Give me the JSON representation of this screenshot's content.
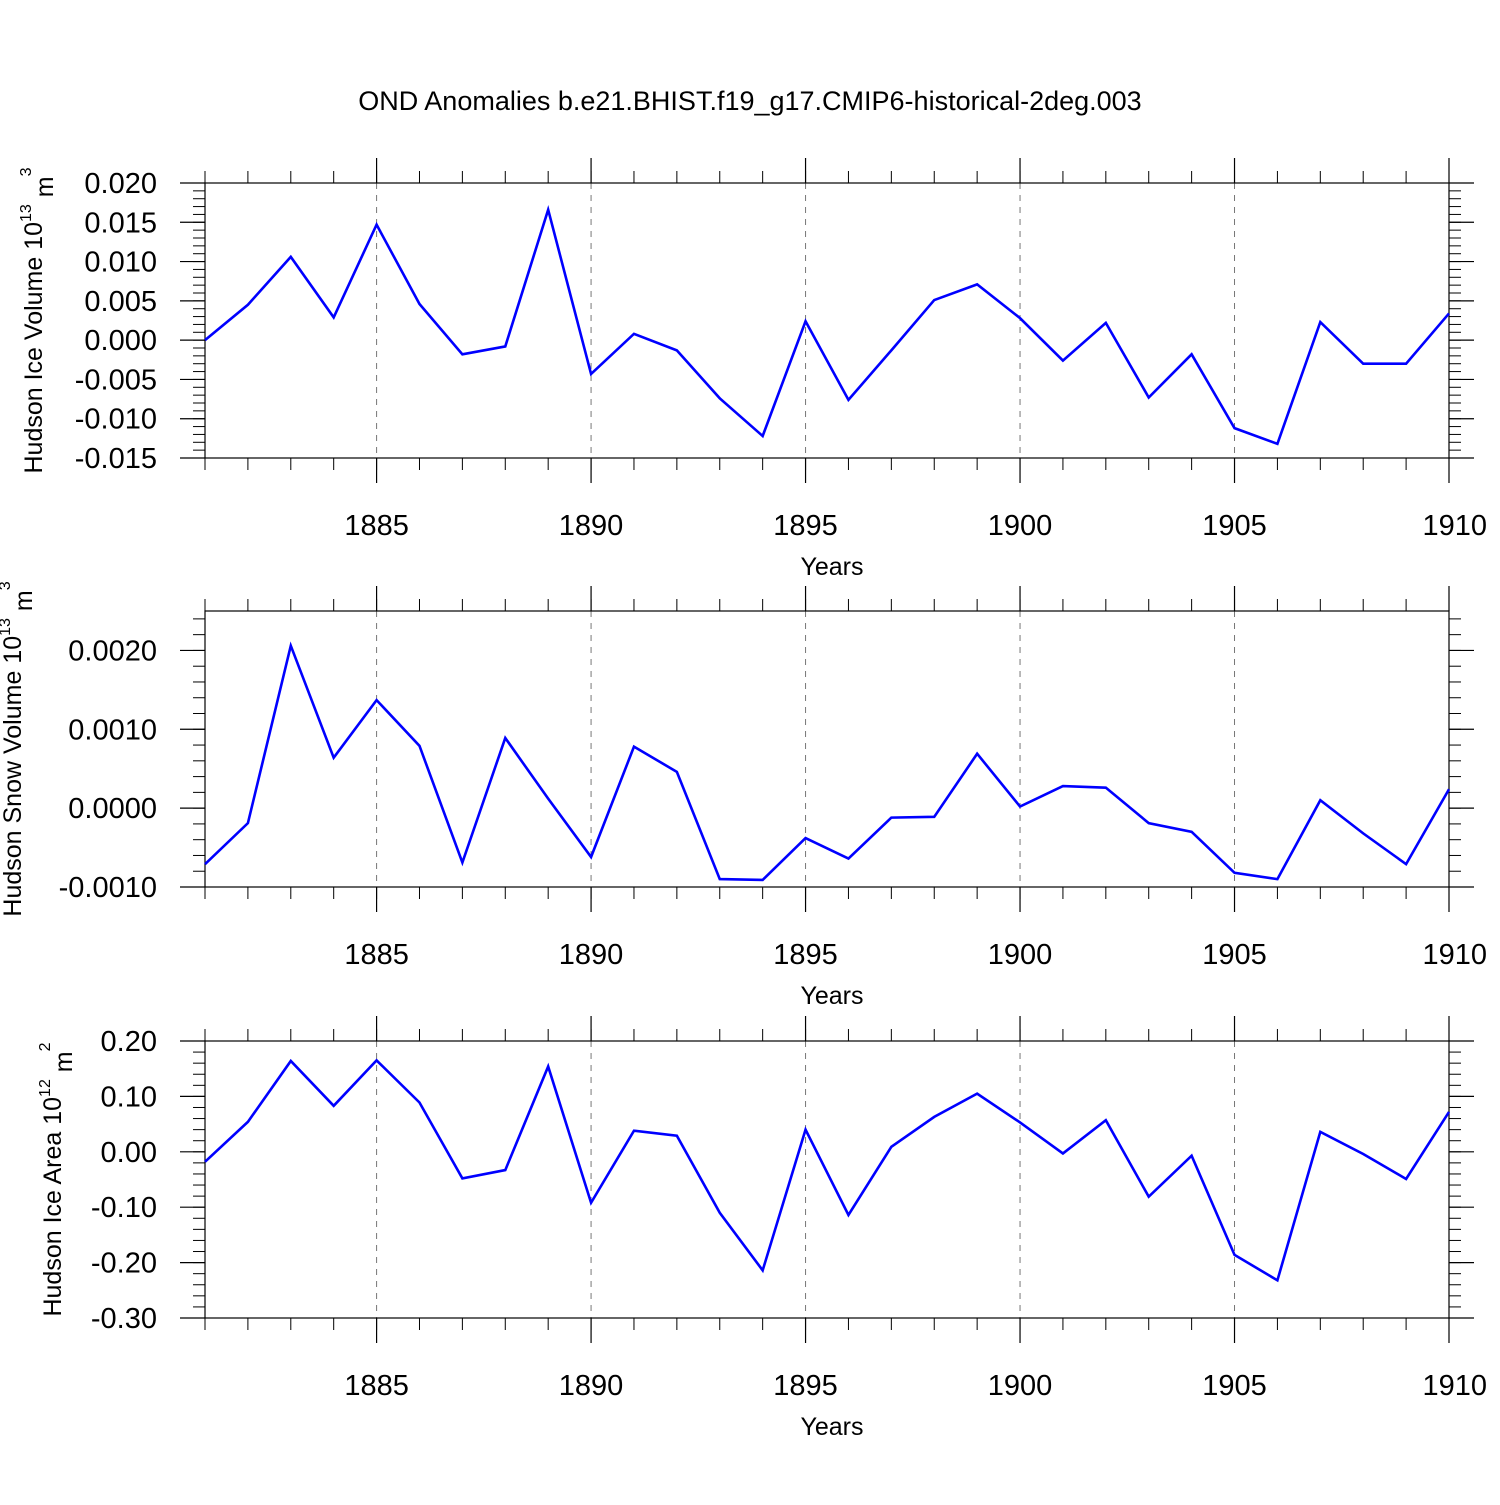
{
  "title": "OND Anomalies b.e21.BHIST.f19_g17.CMIP6-historical-2deg.003",
  "line_color": "#0000ff",
  "chart_data": [
    {
      "type": "line",
      "ylabel": "Hudson Ice Volume 10",
      "ylabel_exp": "13",
      "ylabel_unit": " m",
      "ylabel_unit_exp": "3",
      "xlabel": "Years",
      "xlim": [
        1881,
        1910
      ],
      "ylim": [
        -0.015,
        0.02
      ],
      "yticks": [
        -0.015,
        -0.01,
        -0.005,
        0.0,
        0.005,
        0.01,
        0.015,
        0.02
      ],
      "ytick_labels": [
        "-0.015",
        "-0.010",
        "-0.005",
        "0.000",
        "0.005",
        "0.010",
        "0.015",
        "0.020"
      ],
      "xticks": [
        1885,
        1890,
        1895,
        1900,
        1905,
        1910
      ],
      "xtick_labels": [
        "1885",
        "1890",
        "1895",
        "1900",
        "1905",
        "1910"
      ],
      "grid": "vertical dashed at major ticks",
      "x": [
        1881,
        1882,
        1883,
        1884,
        1885,
        1886,
        1887,
        1888,
        1889,
        1890,
        1891,
        1892,
        1893,
        1894,
        1895,
        1896,
        1897,
        1898,
        1899,
        1900,
        1901,
        1902,
        1903,
        1904,
        1905,
        1906,
        1907,
        1908,
        1909,
        1910
      ],
      "values": [
        0.0,
        0.0045,
        0.0106,
        0.0029,
        0.0147,
        0.0046,
        -0.0018,
        -0.0008,
        0.0166,
        -0.0043,
        0.0008,
        -0.0013,
        -0.0074,
        -0.0122,
        0.0024,
        -0.0076,
        -0.0013,
        0.0051,
        0.0071,
        0.0028,
        -0.0026,
        0.0022,
        -0.0073,
        -0.0018,
        -0.0112,
        -0.0132,
        0.0023,
        -0.003,
        -0.003,
        0.0034
      ]
    },
    {
      "type": "line",
      "ylabel": "Hudson Snow Volume 10",
      "ylabel_exp": "13",
      "ylabel_unit": " m",
      "ylabel_unit_exp": "3",
      "xlabel": "Years",
      "xlim": [
        1881,
        1910
      ],
      "ylim": [
        -0.001,
        0.0025
      ],
      "yticks": [
        -0.001,
        0.0,
        0.001,
        0.002
      ],
      "ytick_labels": [
        "-0.0010",
        "0.0000",
        "0.0010",
        "0.0020"
      ],
      "xticks": [
        1885,
        1890,
        1895,
        1900,
        1905,
        1910
      ],
      "xtick_labels": [
        "1885",
        "1890",
        "1895",
        "1900",
        "1905",
        "1910"
      ],
      "grid": "vertical dashed at major ticks",
      "x": [
        1881,
        1882,
        1883,
        1884,
        1885,
        1886,
        1887,
        1888,
        1889,
        1890,
        1891,
        1892,
        1893,
        1894,
        1895,
        1896,
        1897,
        1898,
        1899,
        1900,
        1901,
        1902,
        1903,
        1904,
        1905,
        1906,
        1907,
        1908,
        1909,
        1910
      ],
      "values": [
        -0.00071,
        -0.00019,
        0.00206,
        0.00064,
        0.00137,
        0.00079,
        -0.00069,
        0.00089,
        0.00012,
        -0.00062,
        0.00078,
        0.00046,
        -0.0009,
        -0.00091,
        -0.00038,
        -0.00064,
        -0.00012,
        -0.00011,
        0.00069,
        2e-05,
        0.00028,
        0.00026,
        -0.00019,
        -0.0003,
        -0.00082,
        -0.0009,
        0.0001,
        -0.00032,
        -0.00071,
        0.00024
      ]
    },
    {
      "type": "line",
      "ylabel": "Hudson Ice Area 10",
      "ylabel_exp": "12",
      "ylabel_unit": " m",
      "ylabel_unit_exp": "2",
      "xlabel": "Years",
      "xlim": [
        1881,
        1910
      ],
      "ylim": [
        -0.3,
        0.2
      ],
      "yticks": [
        -0.3,
        -0.2,
        -0.1,
        0.0,
        0.1,
        0.2
      ],
      "ytick_labels": [
        "-0.30",
        "-0.20",
        "-0.10",
        "0.00",
        "0.10",
        "0.20"
      ],
      "xticks": [
        1885,
        1890,
        1895,
        1900,
        1905,
        1910
      ],
      "xtick_labels": [
        "1885",
        "1890",
        "1895",
        "1900",
        "1905",
        "1910"
      ],
      "grid": "vertical dashed at major ticks",
      "x": [
        1881,
        1882,
        1883,
        1884,
        1885,
        1886,
        1887,
        1888,
        1889,
        1890,
        1891,
        1892,
        1893,
        1894,
        1895,
        1896,
        1897,
        1898,
        1899,
        1900,
        1901,
        1902,
        1903,
        1904,
        1905,
        1906,
        1907,
        1908,
        1909,
        1910
      ],
      "values": [
        -0.018,
        0.054,
        0.164,
        0.083,
        0.165,
        0.089,
        -0.048,
        -0.033,
        0.154,
        -0.092,
        0.038,
        0.029,
        -0.11,
        -0.214,
        0.04,
        -0.114,
        0.009,
        0.063,
        0.105,
        0.053,
        -0.003,
        0.057,
        -0.081,
        -0.007,
        -0.186,
        -0.232,
        0.036,
        -0.004,
        -0.049,
        0.072
      ]
    }
  ]
}
